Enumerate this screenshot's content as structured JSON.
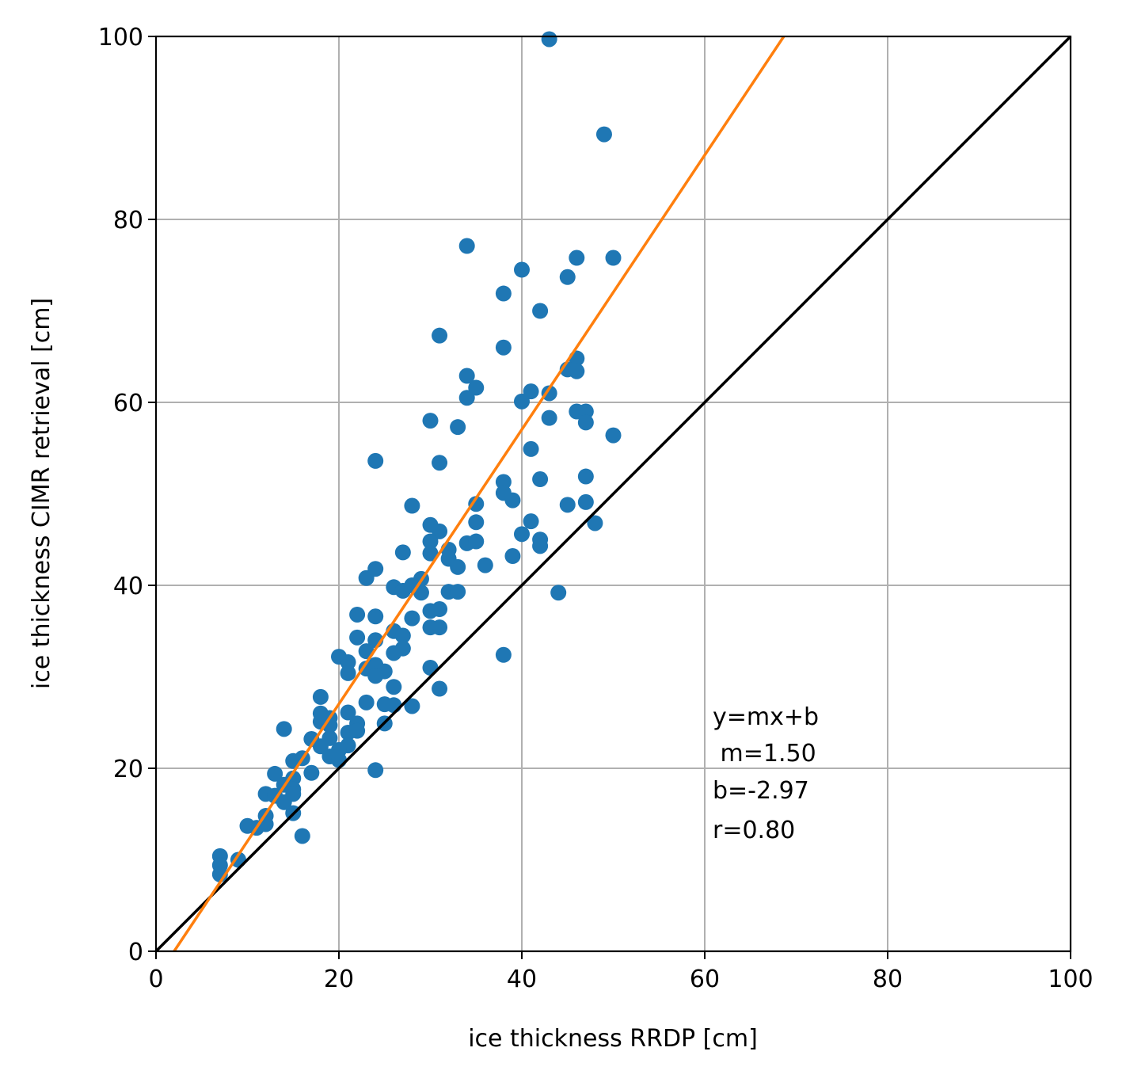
{
  "chart_data": {
    "type": "scatter",
    "title": "",
    "xlabel": "ice thickness RRDP [cm]",
    "ylabel": "ice thickness CIMR retrieval [cm]",
    "xlim": [
      0,
      100
    ],
    "ylim": [
      0,
      100
    ],
    "xticks": [
      "0",
      "20",
      "40",
      "60",
      "80",
      "100"
    ],
    "yticks": [
      "0",
      "20",
      "40",
      "60",
      "80",
      "100"
    ],
    "grid": true,
    "colors": {
      "points": "#1f77b4",
      "fit_line": "#ff7f0e",
      "identity_line": "#000000",
      "grid": "#b0b0b0"
    },
    "annotation": [
      "y=mx+b",
      " m=1.50",
      "b=-2.97",
      "r=0.80"
    ],
    "fit": {
      "m": 1.5,
      "b": -2.97
    },
    "identity_line": {
      "m": 1,
      "b": 0
    },
    "points": [
      [
        43,
        99.7
      ],
      [
        49,
        89.3
      ],
      [
        34,
        77.1
      ],
      [
        50,
        75.8
      ],
      [
        46,
        75.8
      ],
      [
        40,
        74.5
      ],
      [
        45,
        73.7
      ],
      [
        38,
        71.9
      ],
      [
        42,
        70
      ],
      [
        31,
        67.3
      ],
      [
        38,
        66
      ],
      [
        46,
        64.8
      ],
      [
        45,
        63.6
      ],
      [
        46,
        63.4
      ],
      [
        34,
        62.9
      ],
      [
        35,
        61.6
      ],
      [
        34,
        60.5
      ],
      [
        41,
        61.2
      ],
      [
        43,
        61
      ],
      [
        40,
        60.1
      ],
      [
        30,
        58
      ],
      [
        33,
        57.3
      ],
      [
        46,
        59
      ],
      [
        47,
        59
      ],
      [
        47,
        57.8
      ],
      [
        43,
        58.3
      ],
      [
        50,
        56.4
      ],
      [
        24,
        53.6
      ],
      [
        31,
        53.4
      ],
      [
        41,
        54.9
      ],
      [
        47,
        51.9
      ],
      [
        42,
        51.6
      ],
      [
        38,
        51.3
      ],
      [
        38,
        50.1
      ],
      [
        39,
        49.3
      ],
      [
        35,
        48.9
      ],
      [
        45,
        48.8
      ],
      [
        47,
        49.1
      ],
      [
        28,
        48.7
      ],
      [
        35,
        46.9
      ],
      [
        48,
        46.8
      ],
      [
        41,
        47
      ],
      [
        40,
        45.6
      ],
      [
        30,
        46.6
      ],
      [
        31,
        45.9
      ],
      [
        42,
        45
      ],
      [
        30,
        44.8
      ],
      [
        34,
        44.6
      ],
      [
        35,
        44.8
      ],
      [
        42,
        44.3
      ],
      [
        27,
        43.6
      ],
      [
        30,
        43.5
      ],
      [
        32,
        43.9
      ],
      [
        32,
        42.9
      ],
      [
        33,
        42
      ],
      [
        36,
        42.2
      ],
      [
        39,
        43.2
      ],
      [
        23,
        40.8
      ],
      [
        24,
        41.8
      ],
      [
        29,
        40.7
      ],
      [
        26,
        39.8
      ],
      [
        27,
        39.4
      ],
      [
        28,
        40
      ],
      [
        29,
        39.2
      ],
      [
        32,
        39.3
      ],
      [
        33,
        39.3
      ],
      [
        44,
        39.2
      ],
      [
        22,
        36.8
      ],
      [
        24,
        36.6
      ],
      [
        28,
        36.4
      ],
      [
        30,
        37.2
      ],
      [
        31,
        37.4
      ],
      [
        30,
        35.4
      ],
      [
        31,
        35.4
      ],
      [
        26,
        35
      ],
      [
        27,
        34.5
      ],
      [
        22,
        34.3
      ],
      [
        24,
        34
      ],
      [
        27,
        33.1
      ],
      [
        23,
        32.8
      ],
      [
        26,
        32.6
      ],
      [
        38,
        32.4
      ],
      [
        20,
        32.2
      ],
      [
        21,
        31.6
      ],
      [
        24,
        31.3
      ],
      [
        23,
        30.9
      ],
      [
        21,
        30.4
      ],
      [
        25,
        30.6
      ],
      [
        24,
        30.1
      ],
      [
        30,
        31
      ],
      [
        26,
        28.9
      ],
      [
        31,
        28.7
      ],
      [
        18,
        27.8
      ],
      [
        23,
        27.2
      ],
      [
        25,
        27
      ],
      [
        28,
        26.8
      ],
      [
        26,
        26.9
      ],
      [
        21,
        26.1
      ],
      [
        18,
        26
      ],
      [
        19,
        25.5
      ],
      [
        18,
        25.1
      ],
      [
        22,
        24.9
      ],
      [
        25,
        24.9
      ],
      [
        14,
        24.3
      ],
      [
        19,
        24.7
      ],
      [
        21,
        23.9
      ],
      [
        22,
        24.1
      ],
      [
        19,
        23.3
      ],
      [
        17,
        23.2
      ],
      [
        18,
        22.4
      ],
      [
        21,
        22.5
      ],
      [
        20,
        22
      ],
      [
        19,
        21.3
      ],
      [
        16,
        21.1
      ],
      [
        15,
        20.8
      ],
      [
        20,
        20.9
      ],
      [
        24,
        19.8
      ],
      [
        17,
        19.5
      ],
      [
        13,
        19.4
      ],
      [
        15,
        18.9
      ],
      [
        14,
        18.2
      ],
      [
        15,
        17.7
      ],
      [
        15,
        17.2
      ],
      [
        12,
        17.2
      ],
      [
        13,
        17
      ],
      [
        14,
        16.3
      ],
      [
        15,
        15.1
      ],
      [
        12,
        14.8
      ],
      [
        12,
        13.9
      ],
      [
        10,
        13.7
      ],
      [
        11,
        13.5
      ],
      [
        16,
        12.6
      ],
      [
        7,
        10.4
      ],
      [
        9,
        10
      ],
      [
        7,
        9.4
      ],
      [
        7,
        8.4
      ]
    ]
  }
}
